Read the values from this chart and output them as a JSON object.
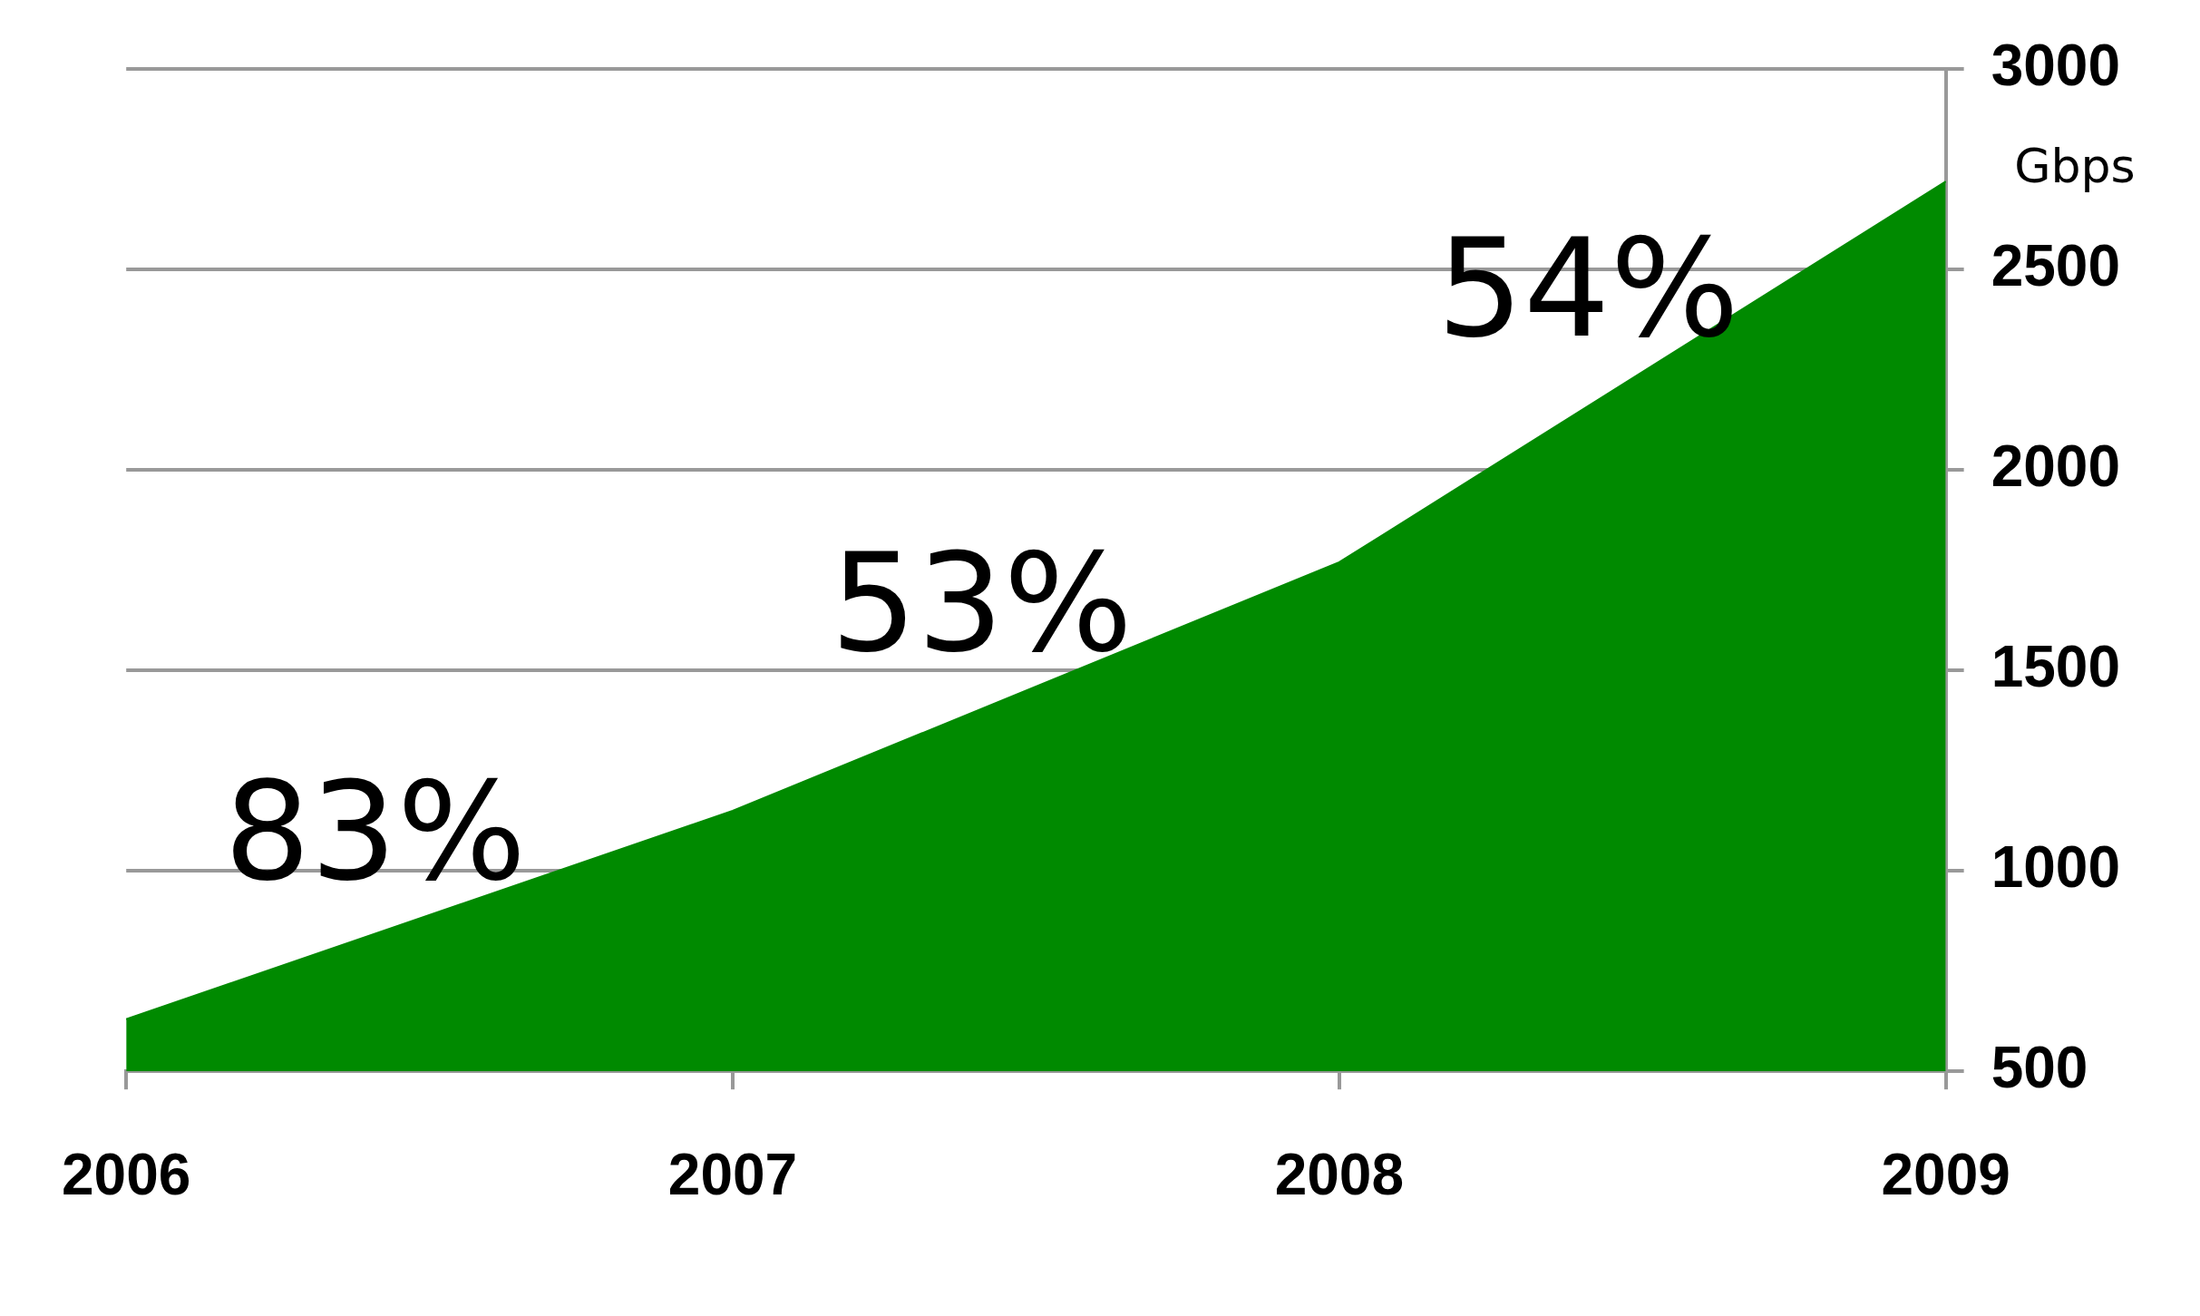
{
  "chart_data": {
    "type": "area",
    "categories": [
      "2006",
      "2007",
      "2008",
      "2009"
    ],
    "series": [
      {
        "color": "#008a00",
        "values": [
          630,
          1150,
          1770,
          2720
        ]
      }
    ],
    "ylabel": "Gbps",
    "ylim": [
      500,
      3000
    ],
    "yticks": [
      500,
      1000,
      1500,
      2000,
      2500,
      3000
    ],
    "annotations": [
      "83%",
      "53%",
      "54%"
    ],
    "grid": "y",
    "legend": false
  }
}
